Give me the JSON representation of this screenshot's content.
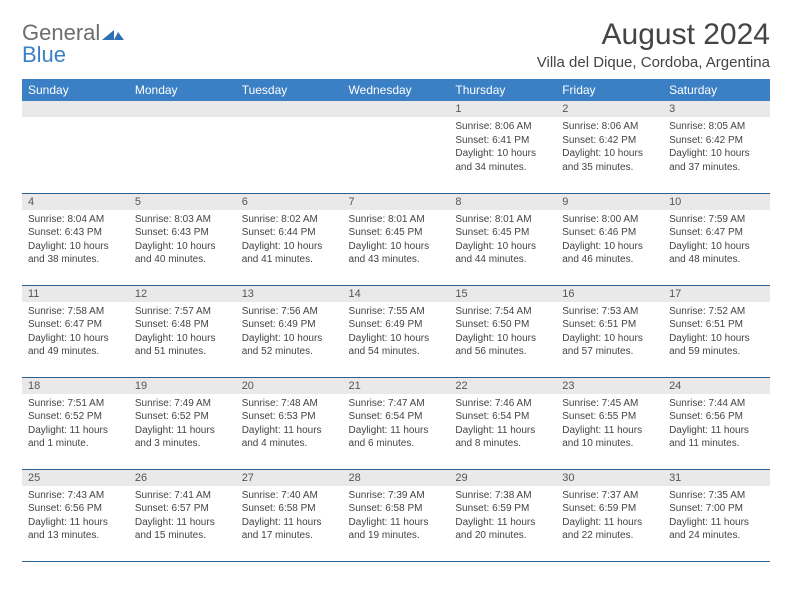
{
  "logo": {
    "line1": "General",
    "line2": "Blue",
    "mark_color": "#2f6fb3"
  },
  "title": "August 2024",
  "location": "Villa del Dique, Cordoba, Argentina",
  "colors": {
    "header_bg": "#3b7fc4",
    "header_text": "#ffffff",
    "row_rule": "#2c5f95",
    "daynum_bg": "#e9e9e9"
  },
  "weekdays": [
    "Sunday",
    "Monday",
    "Tuesday",
    "Wednesday",
    "Thursday",
    "Friday",
    "Saturday"
  ],
  "grid": [
    [
      {
        "empty": true
      },
      {
        "empty": true
      },
      {
        "empty": true
      },
      {
        "empty": true
      },
      {
        "n": "1",
        "sunrise": "Sunrise: 8:06 AM",
        "sunset": "Sunset: 6:41 PM",
        "daylight": "Daylight: 10 hours and 34 minutes."
      },
      {
        "n": "2",
        "sunrise": "Sunrise: 8:06 AM",
        "sunset": "Sunset: 6:42 PM",
        "daylight": "Daylight: 10 hours and 35 minutes."
      },
      {
        "n": "3",
        "sunrise": "Sunrise: 8:05 AM",
        "sunset": "Sunset: 6:42 PM",
        "daylight": "Daylight: 10 hours and 37 minutes."
      }
    ],
    [
      {
        "n": "4",
        "sunrise": "Sunrise: 8:04 AM",
        "sunset": "Sunset: 6:43 PM",
        "daylight": "Daylight: 10 hours and 38 minutes."
      },
      {
        "n": "5",
        "sunrise": "Sunrise: 8:03 AM",
        "sunset": "Sunset: 6:43 PM",
        "daylight": "Daylight: 10 hours and 40 minutes."
      },
      {
        "n": "6",
        "sunrise": "Sunrise: 8:02 AM",
        "sunset": "Sunset: 6:44 PM",
        "daylight": "Daylight: 10 hours and 41 minutes."
      },
      {
        "n": "7",
        "sunrise": "Sunrise: 8:01 AM",
        "sunset": "Sunset: 6:45 PM",
        "daylight": "Daylight: 10 hours and 43 minutes."
      },
      {
        "n": "8",
        "sunrise": "Sunrise: 8:01 AM",
        "sunset": "Sunset: 6:45 PM",
        "daylight": "Daylight: 10 hours and 44 minutes."
      },
      {
        "n": "9",
        "sunrise": "Sunrise: 8:00 AM",
        "sunset": "Sunset: 6:46 PM",
        "daylight": "Daylight: 10 hours and 46 minutes."
      },
      {
        "n": "10",
        "sunrise": "Sunrise: 7:59 AM",
        "sunset": "Sunset: 6:47 PM",
        "daylight": "Daylight: 10 hours and 48 minutes."
      }
    ],
    [
      {
        "n": "11",
        "sunrise": "Sunrise: 7:58 AM",
        "sunset": "Sunset: 6:47 PM",
        "daylight": "Daylight: 10 hours and 49 minutes."
      },
      {
        "n": "12",
        "sunrise": "Sunrise: 7:57 AM",
        "sunset": "Sunset: 6:48 PM",
        "daylight": "Daylight: 10 hours and 51 minutes."
      },
      {
        "n": "13",
        "sunrise": "Sunrise: 7:56 AM",
        "sunset": "Sunset: 6:49 PM",
        "daylight": "Daylight: 10 hours and 52 minutes."
      },
      {
        "n": "14",
        "sunrise": "Sunrise: 7:55 AM",
        "sunset": "Sunset: 6:49 PM",
        "daylight": "Daylight: 10 hours and 54 minutes."
      },
      {
        "n": "15",
        "sunrise": "Sunrise: 7:54 AM",
        "sunset": "Sunset: 6:50 PM",
        "daylight": "Daylight: 10 hours and 56 minutes."
      },
      {
        "n": "16",
        "sunrise": "Sunrise: 7:53 AM",
        "sunset": "Sunset: 6:51 PM",
        "daylight": "Daylight: 10 hours and 57 minutes."
      },
      {
        "n": "17",
        "sunrise": "Sunrise: 7:52 AM",
        "sunset": "Sunset: 6:51 PM",
        "daylight": "Daylight: 10 hours and 59 minutes."
      }
    ],
    [
      {
        "n": "18",
        "sunrise": "Sunrise: 7:51 AM",
        "sunset": "Sunset: 6:52 PM",
        "daylight": "Daylight: 11 hours and 1 minute."
      },
      {
        "n": "19",
        "sunrise": "Sunrise: 7:49 AM",
        "sunset": "Sunset: 6:52 PM",
        "daylight": "Daylight: 11 hours and 3 minutes."
      },
      {
        "n": "20",
        "sunrise": "Sunrise: 7:48 AM",
        "sunset": "Sunset: 6:53 PM",
        "daylight": "Daylight: 11 hours and 4 minutes."
      },
      {
        "n": "21",
        "sunrise": "Sunrise: 7:47 AM",
        "sunset": "Sunset: 6:54 PM",
        "daylight": "Daylight: 11 hours and 6 minutes."
      },
      {
        "n": "22",
        "sunrise": "Sunrise: 7:46 AM",
        "sunset": "Sunset: 6:54 PM",
        "daylight": "Daylight: 11 hours and 8 minutes."
      },
      {
        "n": "23",
        "sunrise": "Sunrise: 7:45 AM",
        "sunset": "Sunset: 6:55 PM",
        "daylight": "Daylight: 11 hours and 10 minutes."
      },
      {
        "n": "24",
        "sunrise": "Sunrise: 7:44 AM",
        "sunset": "Sunset: 6:56 PM",
        "daylight": "Daylight: 11 hours and 11 minutes."
      }
    ],
    [
      {
        "n": "25",
        "sunrise": "Sunrise: 7:43 AM",
        "sunset": "Sunset: 6:56 PM",
        "daylight": "Daylight: 11 hours and 13 minutes."
      },
      {
        "n": "26",
        "sunrise": "Sunrise: 7:41 AM",
        "sunset": "Sunset: 6:57 PM",
        "daylight": "Daylight: 11 hours and 15 minutes."
      },
      {
        "n": "27",
        "sunrise": "Sunrise: 7:40 AM",
        "sunset": "Sunset: 6:58 PM",
        "daylight": "Daylight: 11 hours and 17 minutes."
      },
      {
        "n": "28",
        "sunrise": "Sunrise: 7:39 AM",
        "sunset": "Sunset: 6:58 PM",
        "daylight": "Daylight: 11 hours and 19 minutes."
      },
      {
        "n": "29",
        "sunrise": "Sunrise: 7:38 AM",
        "sunset": "Sunset: 6:59 PM",
        "daylight": "Daylight: 11 hours and 20 minutes."
      },
      {
        "n": "30",
        "sunrise": "Sunrise: 7:37 AM",
        "sunset": "Sunset: 6:59 PM",
        "daylight": "Daylight: 11 hours and 22 minutes."
      },
      {
        "n": "31",
        "sunrise": "Sunrise: 7:35 AM",
        "sunset": "Sunset: 7:00 PM",
        "daylight": "Daylight: 11 hours and 24 minutes."
      }
    ]
  ]
}
